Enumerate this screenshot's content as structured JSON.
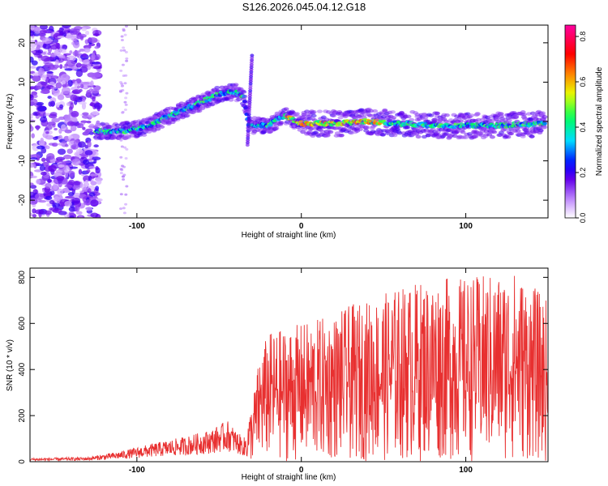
{
  "title": "S126.2026.045.04.12.G18",
  "colors": {
    "snr_line": "#e83030",
    "background": "#ffffff",
    "axis": "#000000"
  },
  "chart_data": [
    {
      "type": "heatmap",
      "xlabel": "Height of straight line (km)",
      "ylabel": "Frequency (Hz)",
      "xlim": [
        -165,
        150
      ],
      "ylim": [
        -24.5,
        24.5
      ],
      "xticks": [
        -100,
        0,
        100
      ],
      "yticks": [
        -20,
        -10,
        0,
        10,
        20
      ],
      "colorbar": {
        "label": "Normalized spectral amplitude",
        "range": [
          0,
          0.85
        ],
        "ticks": [
          0.0,
          0.2,
          0.4,
          0.6,
          0.8
        ]
      },
      "ridge": {
        "x": [
          -125,
          -110,
          -95,
          -80,
          -60,
          -50,
          -40,
          -35,
          -32,
          -28,
          -20,
          -10,
          0,
          20,
          40,
          60,
          80,
          100,
          120,
          148
        ],
        "y": [
          -2.5,
          -2.5,
          -1.5,
          1.5,
          5,
          7,
          7.5,
          6,
          -1,
          -1,
          -1,
          1.5,
          -0.5,
          -0.5,
          0,
          -0.5,
          -1,
          -1,
          -1,
          -0.5
        ]
      }
    },
    {
      "type": "line",
      "xlabel": "Height of straight line (km)",
      "ylabel": "SNR (10 * v/v)",
      "xlim": [
        -165,
        150
      ],
      "ylim": [
        0,
        840
      ],
      "xticks": [
        -100,
        0,
        100
      ],
      "yticks": [
        0,
        200,
        400,
        600,
        800
      ],
      "envelope": {
        "x": [
          -165,
          -130,
          -110,
          -90,
          -70,
          -55,
          -45,
          -35,
          -30,
          -25,
          -20,
          -10,
          0,
          10,
          20,
          30,
          40,
          60,
          80,
          100,
          120,
          130,
          140,
          150
        ],
        "y": [
          15,
          20,
          45,
          80,
          110,
          140,
          180,
          100,
          250,
          480,
          560,
          580,
          600,
          620,
          640,
          680,
          700,
          760,
          800,
          800,
          820,
          830,
          770,
          700
        ]
      }
    }
  ]
}
